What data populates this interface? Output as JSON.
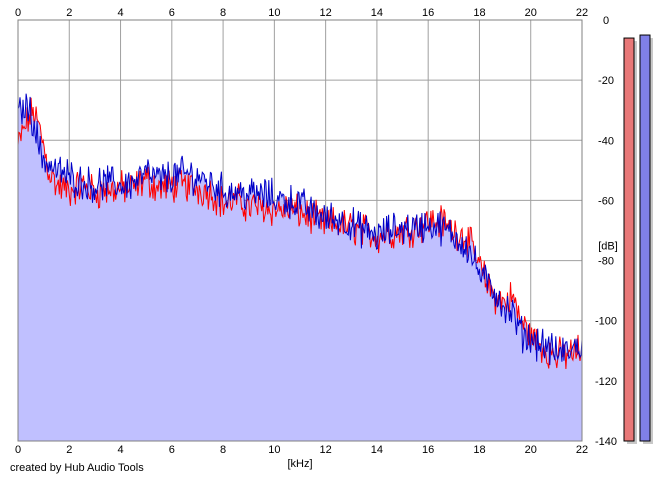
{
  "chart_data": {
    "type": "area",
    "xlabel": "[kHz]",
    "ylabel": "[dB]",
    "xlim": [
      0,
      22
    ],
    "ylim": [
      -140,
      0
    ],
    "x_ticks": [
      0,
      2,
      4,
      6,
      8,
      10,
      12,
      14,
      16,
      18,
      20,
      22
    ],
    "y_ticks": [
      0,
      -20,
      -40,
      -60,
      -80,
      -100,
      -120,
      -140
    ],
    "grid": true,
    "fill_color": "#c0c0ff",
    "series": [
      {
        "color": "#ff0000",
        "x": [
          0.0,
          0.3,
          0.6,
          0.9,
          1.2,
          1.5,
          2.0,
          2.5,
          3.0,
          3.5,
          4.0,
          4.5,
          5.0,
          5.5,
          6.0,
          6.5,
          7.0,
          7.5,
          8.0,
          8.5,
          9.0,
          9.5,
          10.0,
          10.5,
          11.0,
          11.5,
          12.0,
          12.5,
          13.0,
          13.5,
          14.0,
          14.5,
          15.0,
          15.5,
          16.0,
          16.5,
          17.0,
          17.5,
          18.0,
          18.3,
          18.6,
          19.0,
          19.3,
          19.6,
          20.0,
          20.5,
          21.0,
          21.5,
          22.0
        ],
        "y": [
          -42,
          -35,
          -30,
          -38,
          -50,
          -55,
          -57,
          -55,
          -57,
          -57,
          -56,
          -56,
          -53,
          -56,
          -55,
          -55,
          -56,
          -57,
          -61,
          -60,
          -62,
          -62,
          -63,
          -63,
          -64,
          -66,
          -68,
          -68,
          -69,
          -70,
          -72,
          -71,
          -70,
          -69,
          -67,
          -67,
          -70,
          -72,
          -82,
          -88,
          -92,
          -94,
          -92,
          -100,
          -105,
          -109,
          -112,
          -111,
          -110
        ]
      },
      {
        "color": "#0000c8",
        "x": [
          0.0,
          0.3,
          0.6,
          0.9,
          1.2,
          1.5,
          2.0,
          2.5,
          3.0,
          3.5,
          4.0,
          4.5,
          5.0,
          5.5,
          6.0,
          6.5,
          7.0,
          7.5,
          8.0,
          8.5,
          9.0,
          9.5,
          10.0,
          10.5,
          11.0,
          11.5,
          12.0,
          12.5,
          13.0,
          13.5,
          14.0,
          14.5,
          15.0,
          15.5,
          16.0,
          16.5,
          17.0,
          17.5,
          18.0,
          18.3,
          18.6,
          19.0,
          19.3,
          19.6,
          20.0,
          20.5,
          21.0,
          21.5,
          22.0
        ],
        "y": [
          -32,
          -28,
          -33,
          -45,
          -48,
          -50,
          -52,
          -54,
          -55,
          -54,
          -55,
          -54,
          -51,
          -53,
          -52,
          -51,
          -52,
          -54,
          -57,
          -57,
          -58,
          -58,
          -59,
          -60,
          -61,
          -64,
          -66,
          -66,
          -68,
          -70,
          -72,
          -70,
          -69,
          -69,
          -68,
          -69,
          -72,
          -75,
          -84,
          -88,
          -90,
          -96,
          -98,
          -104,
          -106,
          -108,
          -111,
          -110,
          -108
        ]
      }
    ],
    "level_meters": [
      {
        "color": "#e87878",
        "value_db": -6
      },
      {
        "color": "#8080e8",
        "value_db": -5
      }
    ]
  },
  "footer": {
    "credit": "created by Hub Audio Tools"
  }
}
